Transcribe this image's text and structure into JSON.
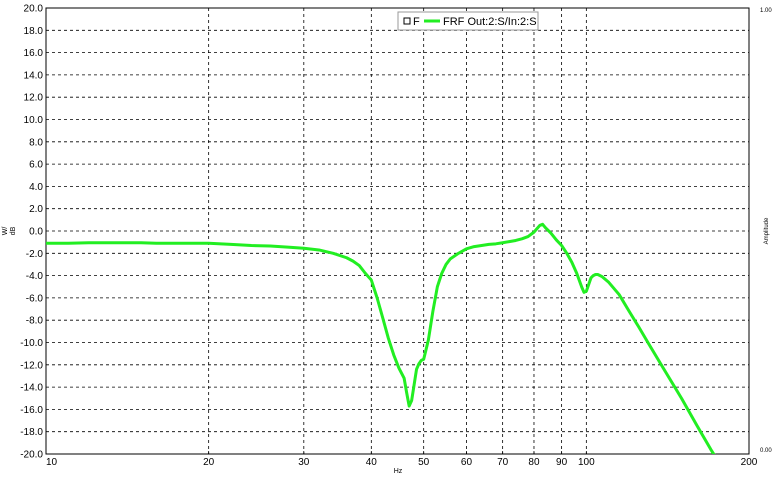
{
  "chart_data": {
    "type": "line",
    "x_scale": "log",
    "xlim": [
      10,
      200
    ],
    "ylim": [
      -20,
      20
    ],
    "x_ticks": [
      10,
      20,
      30,
      40,
      50,
      60,
      70,
      80,
      90,
      100,
      200
    ],
    "x_tick_labels": [
      "10",
      "20",
      "30",
      "40",
      "50",
      "60",
      "70",
      "80",
      "90",
      "100",
      "200"
    ],
    "y_ticks": [
      -20,
      -18,
      -16,
      -14,
      -12,
      -10,
      -8,
      -6,
      -4,
      -2,
      0,
      2,
      4,
      6,
      8,
      10,
      12,
      14,
      16,
      18,
      20
    ],
    "y_tick_labels": [
      "-20.0",
      "-18.0",
      "-16.0",
      "-14.0",
      "-12.0",
      "-10.0",
      "-8.0",
      "-6.0",
      "-4.0",
      "-2.0",
      "0.0",
      "2.0",
      "4.0",
      "6.0",
      "8.0",
      "10.0",
      "12.0",
      "14.0",
      "16.0",
      "18.0",
      "20.0"
    ],
    "xlabel": "Hz",
    "ylabel": "dB",
    "ylabel_prefix": "W/",
    "right_ylabel": "Amplitude",
    "right_top_label": "1.00",
    "right_bottom_label": "0.00",
    "grid": true,
    "grid_style": "dashed",
    "legend": {
      "position": "top-center",
      "marker_label": "F",
      "entries": [
        {
          "name": "FRF Out:2:S/In:2:S",
          "color": "#22ee22"
        }
      ]
    },
    "series": [
      {
        "name": "FRF Out:2:S/In:2:S",
        "color": "#22ee22",
        "x": [
          10,
          11,
          12,
          13,
          14,
          15,
          16,
          17,
          18,
          19,
          20,
          22,
          24,
          26,
          28,
          30,
          32,
          34,
          36,
          37,
          38,
          39,
          40,
          41,
          42,
          43,
          44,
          45,
          46,
          46.5,
          47,
          47.5,
          48,
          48.5,
          49,
          49.5,
          50,
          51,
          52,
          53,
          54,
          55,
          56,
          58,
          60,
          62,
          64,
          66,
          68,
          70,
          72,
          74,
          76,
          78,
          80,
          81,
          82,
          83,
          84,
          86,
          88,
          90,
          92,
          94,
          96,
          98,
          99,
          100,
          101,
          102,
          103,
          104,
          105,
          107,
          110,
          115,
          120,
          125,
          130,
          140,
          150,
          160,
          170,
          180,
          184
        ],
        "y": [
          -1.1,
          -1.1,
          -1.05,
          -1.05,
          -1.05,
          -1.05,
          -1.1,
          -1.1,
          -1.1,
          -1.1,
          -1.1,
          -1.2,
          -1.3,
          -1.35,
          -1.45,
          -1.55,
          -1.7,
          -2.0,
          -2.4,
          -2.7,
          -3.1,
          -3.8,
          -4.4,
          -6.0,
          -7.8,
          -9.6,
          -11.1,
          -12.3,
          -13.2,
          -14.5,
          -15.7,
          -15.2,
          -13.8,
          -12.4,
          -11.9,
          -11.6,
          -11.5,
          -9.8,
          -7.2,
          -5.0,
          -3.8,
          -3.0,
          -2.5,
          -2.0,
          -1.6,
          -1.4,
          -1.3,
          -1.2,
          -1.15,
          -1.05,
          -0.95,
          -0.85,
          -0.7,
          -0.5,
          -0.1,
          0.2,
          0.5,
          0.6,
          0.3,
          -0.2,
          -0.8,
          -1.3,
          -2.0,
          -2.8,
          -3.8,
          -5.0,
          -5.5,
          -5.4,
          -4.8,
          -4.2,
          -4.0,
          -3.9,
          -3.9,
          -4.1,
          -4.6,
          -5.7,
          -7.2,
          -8.6,
          -10.0,
          -12.6,
          -15.0,
          -17.4,
          -19.6,
          -21.5,
          -22.0
        ]
      }
    ]
  }
}
